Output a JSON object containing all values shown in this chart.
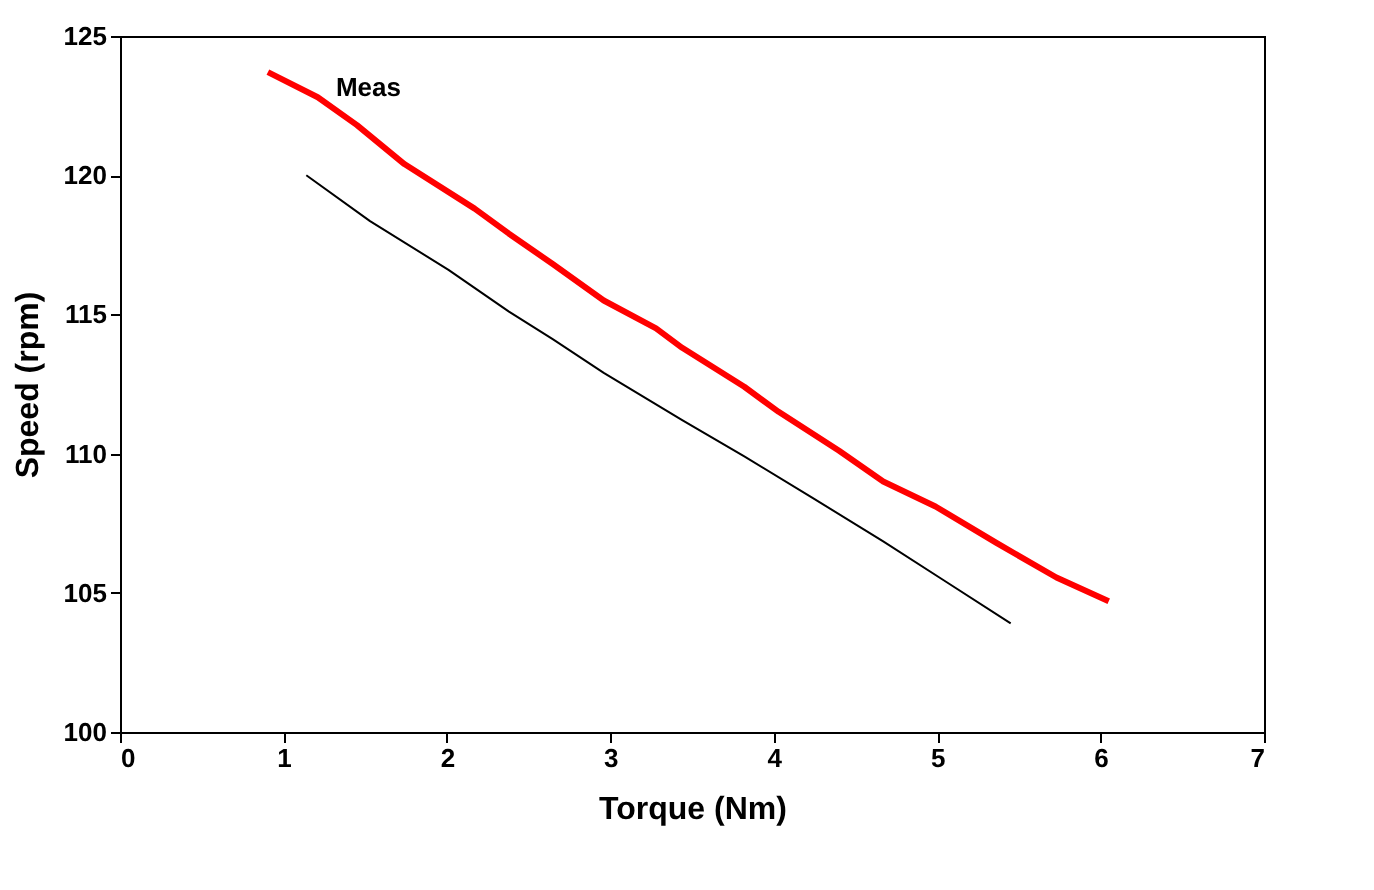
{
  "chart_data": {
    "type": "line",
    "xlabel": "Torque (Nm)",
    "ylabel": "Speed (rpm)",
    "xlim": [
      0,
      7
    ],
    "xticks": [
      0,
      1,
      2,
      3,
      4,
      5,
      6,
      7
    ],
    "ylim": [
      100,
      125
    ],
    "yticks": [
      100,
      105,
      110,
      115,
      120,
      125
    ],
    "grid": false,
    "marker": "none",
    "line_style": "solid",
    "series": [
      {
        "name": "Meas",
        "color": "#ff0000",
        "x": [
          0.905,
          1.21,
          1.45,
          1.74,
          2.17,
          2.38,
          2.65,
          2.96,
          3.28,
          3.44,
          3.82,
          4.03,
          4.4,
          4.67,
          4.99,
          5.36,
          5.73,
          6.05
        ],
        "values": [
          123.7,
          122.8,
          121.8,
          120.4,
          118.8,
          117.9,
          116.8,
          115.5,
          114.5,
          113.8,
          112.4,
          111.5,
          110.1,
          109.0,
          108.1,
          106.8,
          105.55,
          104.7
        ]
      },
      {
        "color": "#000000",
        "x": [
          1.14,
          1.53,
          2.01,
          2.38,
          2.65,
          2.96,
          3.44,
          3.82,
          4.24,
          4.67,
          5.04,
          5.45
        ],
        "values": [
          120.0,
          118.35,
          116.6,
          115.1,
          114.1,
          112.9,
          111.2,
          109.9,
          108.4,
          106.85,
          105.45,
          103.9
        ]
      }
    ]
  }
}
